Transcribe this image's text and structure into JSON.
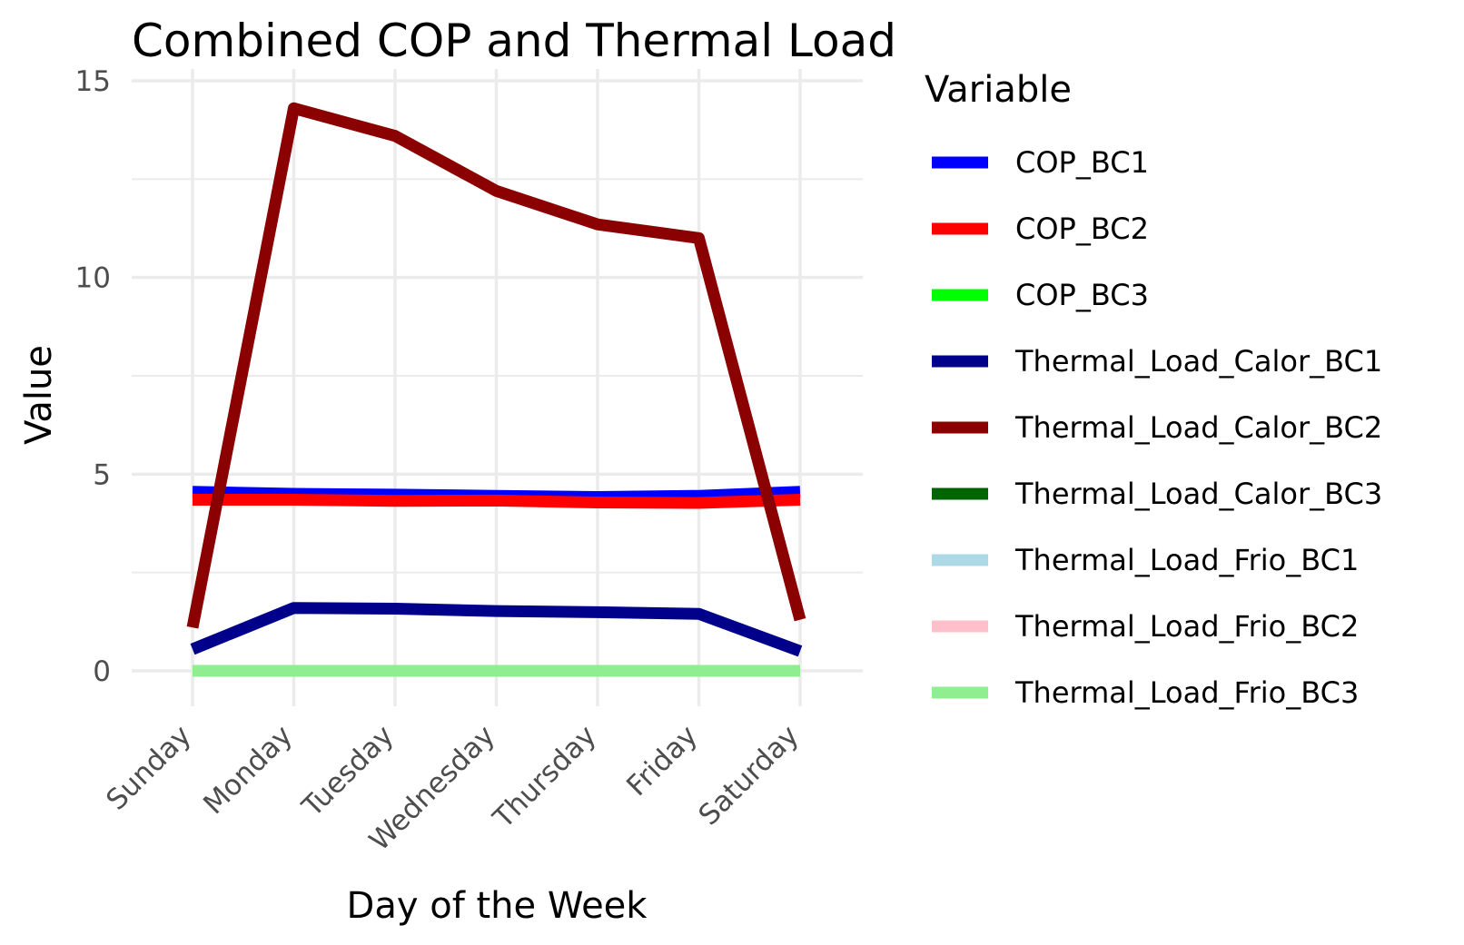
{
  "chart_data": {
    "type": "line",
    "title": "Combined COP and Thermal Load",
    "xlabel": "Day of the Week",
    "ylabel": "Value",
    "categories": [
      "Sunday",
      "Monday",
      "Tuesday",
      "Wednesday",
      "Thursday",
      "Friday",
      "Saturday"
    ],
    "ylim": [
      -0.9,
      15.3
    ],
    "yticks": [
      0,
      5,
      10,
      15
    ],
    "ytick_labels": [
      "0",
      "5",
      "10",
      "15"
    ],
    "grid": true,
    "legend": {
      "title": "Variable",
      "position": "right"
    },
    "series": [
      {
        "name": "Thermal_Load_Frio_BC1",
        "color": "#add8e6",
        "values": [
          0,
          0,
          0,
          0,
          0,
          0,
          0
        ]
      },
      {
        "name": "Thermal_Load_Frio_BC2",
        "color": "#ffc0cb",
        "values": [
          0,
          0,
          0,
          0,
          0,
          0,
          0
        ]
      },
      {
        "name": "Thermal_Load_Calor_BC3",
        "color": "#006400",
        "values": [
          0,
          0,
          0,
          0,
          0,
          0,
          0
        ]
      },
      {
        "name": "COP_BC3",
        "color": "#00ff00",
        "values": [
          0,
          0,
          0,
          0,
          0,
          0,
          0
        ]
      },
      {
        "name": "Thermal_Load_Frio_BC3",
        "color": "#90ee90",
        "values": [
          0,
          0,
          0,
          0,
          0,
          0,
          0
        ]
      },
      {
        "name": "COP_BC1",
        "color": "#0000ff",
        "values": [
          4.55,
          4.5,
          4.48,
          4.45,
          4.42,
          4.45,
          4.55
        ]
      },
      {
        "name": "COP_BC2",
        "color": "#ff0000",
        "values": [
          4.35,
          4.35,
          4.32,
          4.33,
          4.28,
          4.27,
          4.35
        ]
      },
      {
        "name": "Thermal_Load_Calor_BC1",
        "color": "#00008b",
        "values": [
          0.55,
          1.6,
          1.58,
          1.52,
          1.49,
          1.45,
          0.5
        ]
      },
      {
        "name": "Thermal_Load_Calor_BC2",
        "color": "#8b0000",
        "values": [
          1.1,
          14.3,
          13.6,
          12.2,
          11.35,
          11.0,
          1.3
        ]
      }
    ],
    "legend_order": [
      "COP_BC1",
      "COP_BC2",
      "COP_BC3",
      "Thermal_Load_Calor_BC1",
      "Thermal_Load_Calor_BC2",
      "Thermal_Load_Calor_BC3",
      "Thermal_Load_Frio_BC1",
      "Thermal_Load_Frio_BC2",
      "Thermal_Load_Frio_BC3"
    ]
  }
}
